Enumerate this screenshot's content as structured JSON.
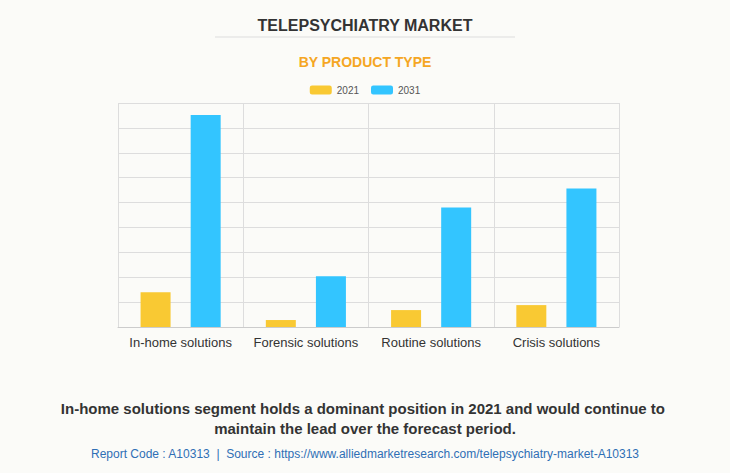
{
  "chart_data": {
    "type": "bar",
    "title": "TELEPSYCHIATRY MARKET",
    "subtitle": "BY PRODUCT TYPE",
    "categories": [
      "In-home solutions",
      "Forensic solutions",
      "Routine solutions",
      "Crisis solutions"
    ],
    "series": [
      {
        "name": "2021",
        "color": "#f9c933",
        "values": [
          1.4,
          0.28,
          0.68,
          0.88
        ]
      },
      {
        "name": "2031",
        "color": "#33c5ff",
        "values": [
          8.52,
          2.04,
          4.8,
          5.56
        ]
      }
    ],
    "ylim": [
      0,
      9
    ],
    "yticks": [
      0,
      1,
      2,
      3,
      4,
      5,
      6,
      7,
      8,
      9
    ],
    "grid": true,
    "legend": "top",
    "tick_labels": "x",
    "caption": "In-home solutions segment holds a dominant position in 2021 and would continue to maintain the lead over the forecast period.",
    "source": "Report Code : A10313  |  Source : https://www.alliedmarketresearch.com/telepsychiatry-market-A10313"
  }
}
